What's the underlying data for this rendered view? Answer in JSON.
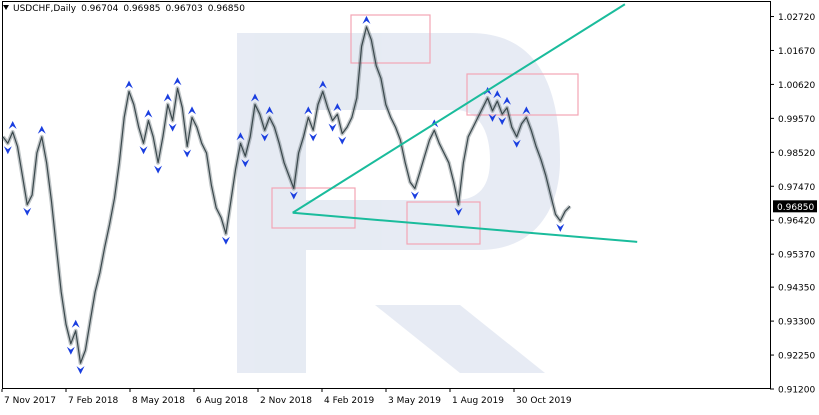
{
  "header": {
    "symbol": "USDCHF,Daily",
    "open": "0.96704",
    "high": "0.96985",
    "low": "0.96703",
    "close": "0.96850"
  },
  "chart_data": {
    "type": "line",
    "title": "USDCHF,Daily",
    "xlabel": "",
    "ylabel": "",
    "ylim": [
      0.912,
      1.032
    ],
    "y_ticks": [
      "1.02720",
      "1.01670",
      "1.00620",
      "0.99570",
      "0.98520",
      "0.97470",
      "0.96420",
      "0.95370",
      "0.94350",
      "0.93300",
      "0.92250",
      "0.91200"
    ],
    "x_ticks": [
      "7 Nov 2017",
      "7 Feb 2018",
      "8 May 2018",
      "6 Aug 2018",
      "2 Nov 2018",
      "4 Feb 2019",
      "3 May 2019",
      "1 Aug 2019",
      "30 Oct 2019"
    ],
    "current_price": "0.96850",
    "grid": false,
    "series": [
      {
        "values": [
          0.99,
          0.988,
          0.9915,
          0.987,
          0.978,
          0.969,
          0.972,
          0.985,
          0.99,
          0.982,
          0.97,
          0.956,
          0.942,
          0.932,
          0.926,
          0.93,
          0.92,
          0.924,
          0.933,
          0.942,
          0.948,
          0.956,
          0.963,
          0.971,
          0.982,
          0.996,
          1.004,
          1.0,
          0.993,
          0.988,
          0.995,
          0.99,
          0.982,
          0.99,
          1.0,
          0.995,
          1.005,
          0.999,
          0.987,
          0.996,
          0.993,
          0.988,
          0.985,
          0.975,
          0.968,
          0.965,
          0.96,
          0.97,
          0.98,
          0.988,
          0.984,
          0.99,
          1.0,
          0.997,
          0.992,
          0.996,
          0.993,
          0.988,
          0.982,
          0.978,
          0.974,
          0.985,
          0.99,
          0.996,
          0.992,
          1.0,
          1.004,
          0.999,
          0.995,
          0.997,
          0.991,
          0.993,
          0.996,
          1.002,
          1.018,
          1.024,
          1.02,
          1.012,
          1.008,
          1.0,
          0.996,
          0.993,
          0.989,
          0.982,
          0.976,
          0.974,
          0.979,
          0.984,
          0.989,
          0.992,
          0.988,
          0.985,
          0.982,
          0.976,
          0.969,
          0.982,
          0.99,
          0.993,
          0.996,
          0.999,
          1.002,
          0.998,
          1.001,
          0.997,
          0.999,
          0.993,
          0.99,
          0.994,
          0.996,
          0.992,
          0.987,
          0.983,
          0.978,
          0.972,
          0.966,
          0.964,
          0.967,
          0.9685
        ]
      }
    ],
    "trendlines": [
      {
        "x": [
          0.378,
          0.81
        ],
        "y": [
          0.9665,
          1.031
        ]
      },
      {
        "x": [
          0.378,
          0.826
        ],
        "y": [
          0.9665,
          0.9575
        ]
      }
    ]
  }
}
